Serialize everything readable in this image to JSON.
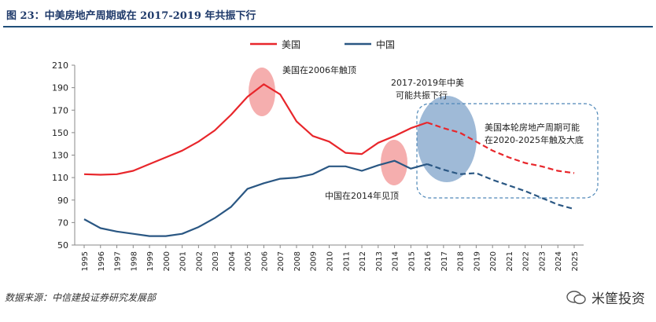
{
  "header": {
    "title": "图 23：中美房地产周期或在 2017-2019 年共振下行"
  },
  "footer": {
    "source": "数据来源：中信建投证券研究发展部",
    "watermark": "米筐投资"
  },
  "chart_data": {
    "type": "line",
    "title": "图 23：中美房地产周期或在 2017-2019 年共振下行",
    "xlabel": "",
    "ylabel": "",
    "ylim": [
      50,
      210
    ],
    "yticks": [
      50,
      70,
      90,
      110,
      130,
      150,
      170,
      190,
      210
    ],
    "x": [
      "1995",
      "1996",
      "1997",
      "1998",
      "1999",
      "2000",
      "2001",
      "2002",
      "2003",
      "2004",
      "2005",
      "2006",
      "2007",
      "2008",
      "2009",
      "2010",
      "2011",
      "2012",
      "2013",
      "2014",
      "2015",
      "2016",
      "2017",
      "2018",
      "2019",
      "2020",
      "2021",
      "2022",
      "2023",
      "2024",
      "2025"
    ],
    "series": [
      {
        "name": "美国",
        "color": "#e8262b",
        "values": [
          113,
          112.5,
          113,
          116,
          122,
          128,
          134,
          142,
          152,
          166,
          182,
          193,
          184,
          160,
          147,
          142,
          132,
          131,
          141,
          147,
          154,
          159,
          154,
          150,
          142,
          134,
          128,
          123,
          120,
          116,
          114
        ],
        "forecast_from": "2016"
      },
      {
        "name": "中国",
        "color": "#2a5783",
        "values": [
          73,
          65,
          62,
          60,
          58,
          58,
          60,
          66,
          74,
          84,
          100,
          105,
          109,
          110,
          113,
          120,
          120,
          116,
          121,
          125,
          118,
          122,
          117,
          113,
          114,
          108,
          103,
          98,
          92,
          86,
          82
        ],
        "forecast_from": "2016"
      }
    ],
    "legend": [
      "美国",
      "中国"
    ],
    "annotations": [
      {
        "text": "美国在2006年触顶"
      },
      {
        "text": "2017-2019年中美"
      },
      {
        "text": "可能共振下行"
      },
      {
        "text": "美国本轮房地产周期可能"
      },
      {
        "text": "在2020-2025年触及大底"
      },
      {
        "text": "中国在2014年见顶"
      }
    ]
  }
}
